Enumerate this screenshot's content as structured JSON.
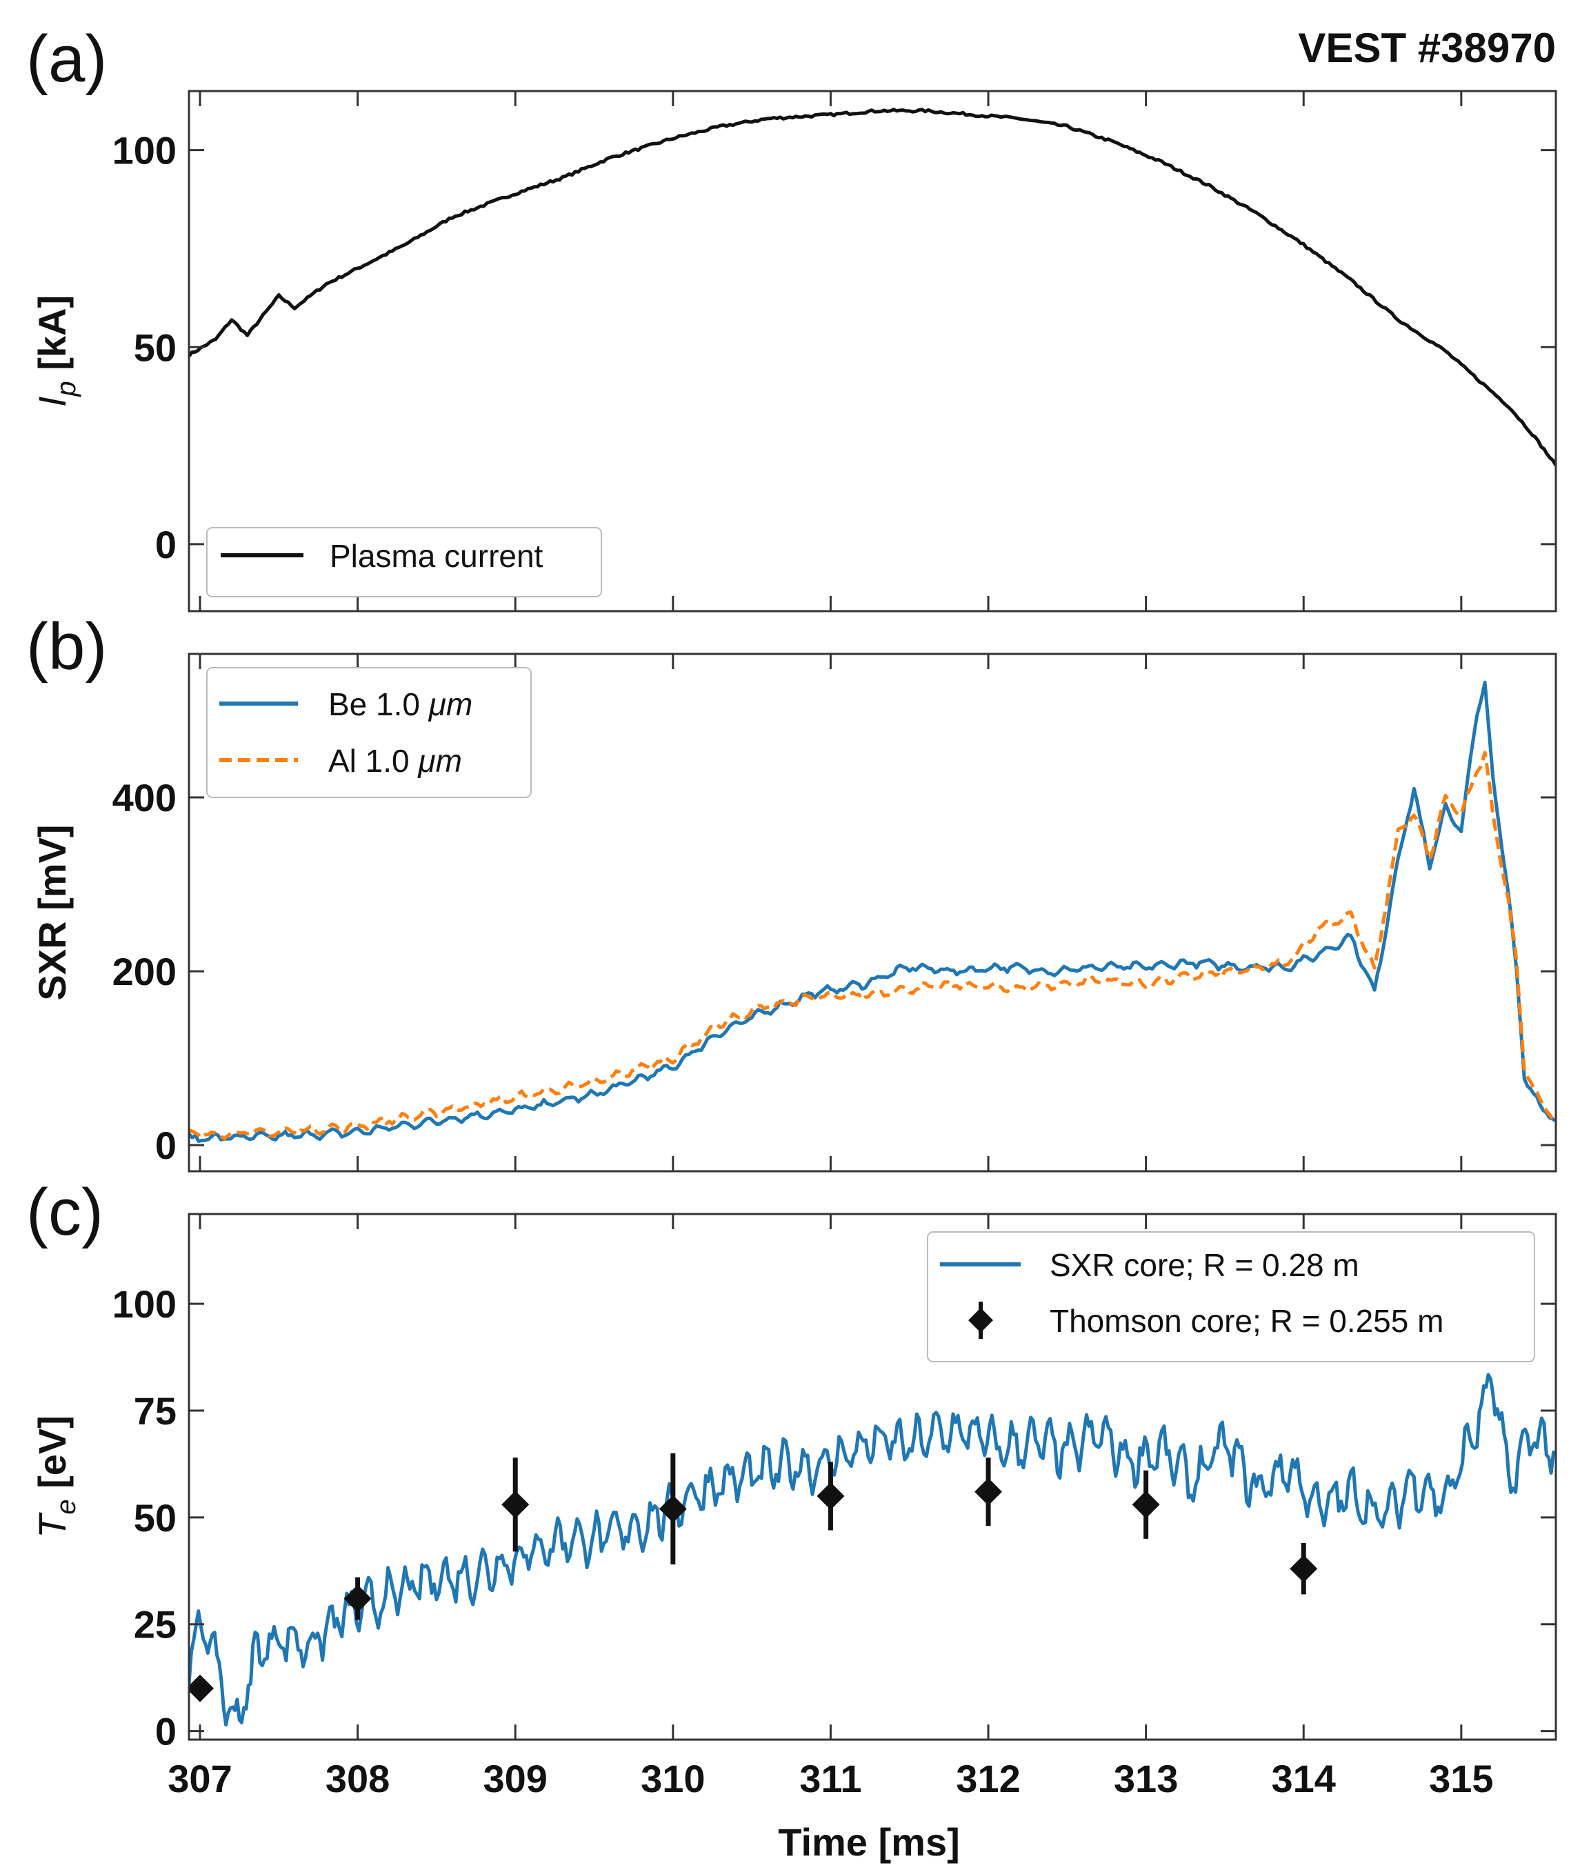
{
  "figure": {
    "title": "VEST #38970",
    "xlabel": "Time [ms]",
    "x_ticks": [
      307,
      308,
      309,
      310,
      311,
      312,
      313,
      314,
      315
    ],
    "xlim": [
      306.93,
      315.6
    ]
  },
  "chart_data": [
    {
      "panel": "(a)",
      "type": "line",
      "ylabel_main": "I",
      "ylabel_sub": "p",
      "ylabel_unit": " [kA]",
      "ylim": [
        -17,
        115
      ],
      "y_ticks": [
        0,
        50,
        100
      ],
      "legend_position": "bottom-left",
      "series": [
        {
          "name": "Plasma current",
          "color": "#111111",
          "style": "solid",
          "x": [
            306.93,
            307.1,
            307.2,
            307.3,
            307.4,
            307.5,
            307.6,
            307.8,
            308.0,
            308.3,
            308.6,
            309.0,
            309.3,
            309.6,
            310.0,
            310.3,
            310.6,
            311.0,
            311.3,
            311.6,
            311.9,
            312.2,
            312.5,
            312.8,
            313.1,
            313.4,
            313.7,
            314.0,
            314.3,
            314.6,
            314.9,
            315.1,
            315.3,
            315.45,
            315.6
          ],
          "y": [
            48,
            52,
            57,
            53,
            58,
            63,
            60,
            66,
            70,
            76,
            83,
            89,
            93,
            98,
            103,
            106,
            108,
            109,
            110,
            110,
            109,
            108,
            106,
            102,
            97,
            91,
            84,
            76,
            67,
            57,
            49,
            42,
            35,
            28,
            20
          ]
        }
      ]
    },
    {
      "panel": "(b)",
      "type": "line",
      "ylabel": "SXR [mV]",
      "ylim": [
        -30,
        565
      ],
      "y_ticks": [
        0,
        200,
        400
      ],
      "legend_position": "top-left",
      "series": [
        {
          "name": "Be 1.0 ",
          "name_unit": "μm",
          "color": "#1f77b4",
          "style": "solid",
          "x": [
            306.93,
            307.5,
            308.0,
            308.5,
            309.0,
            309.5,
            310.0,
            310.3,
            310.6,
            310.9,
            311.2,
            311.5,
            311.8,
            312.1,
            312.4,
            312.7,
            313.0,
            313.3,
            313.6,
            313.9,
            314.1,
            314.3,
            314.45,
            314.6,
            314.7,
            314.8,
            314.9,
            315.0,
            315.1,
            315.15,
            315.2,
            315.3,
            315.35,
            315.4,
            315.5,
            315.6
          ],
          "y": [
            8,
            10,
            15,
            28,
            40,
            58,
            90,
            130,
            155,
            175,
            185,
            205,
            200,
            205,
            200,
            205,
            205,
            210,
            205,
            205,
            220,
            240,
            175,
            330,
            410,
            320,
            390,
            360,
            500,
            530,
            420,
            290,
            200,
            80,
            45,
            28
          ]
        },
        {
          "name": "Al 1.0 ",
          "name_unit": "μm",
          "color": "#ff7f0e",
          "style": "dashed",
          "x": [
            306.93,
            307.5,
            308.0,
            308.5,
            309.0,
            309.5,
            310.0,
            310.3,
            310.6,
            310.9,
            311.2,
            311.5,
            311.8,
            312.1,
            312.4,
            312.7,
            313.0,
            313.3,
            313.6,
            313.9,
            314.1,
            314.3,
            314.45,
            314.6,
            314.7,
            314.8,
            314.9,
            315.0,
            315.1,
            315.15,
            315.2,
            315.3,
            315.35,
            315.4,
            315.5,
            315.6
          ],
          "y": [
            12,
            15,
            22,
            38,
            55,
            72,
            100,
            140,
            160,
            170,
            172,
            180,
            185,
            180,
            183,
            190,
            185,
            195,
            200,
            210,
            250,
            265,
            200,
            360,
            380,
            330,
            400,
            380,
            430,
            450,
            380,
            280,
            210,
            90,
            50,
            30
          ]
        }
      ]
    },
    {
      "panel": "(c)",
      "type": "line",
      "ylabel_main": "T",
      "ylabel_sub": "e",
      "ylabel_unit": " [eV]",
      "ylim": [
        -2,
        121
      ],
      "y_ticks": [
        0,
        25,
        50,
        75,
        100
      ],
      "legend_position": "top-right",
      "series": [
        {
          "name": "SXR core; R = 0.28 m",
          "color": "#1f77b4",
          "style": "solid",
          "x": [
            306.93,
            307.05,
            307.15,
            307.25,
            307.35,
            307.5,
            307.7,
            307.9,
            308.1,
            308.3,
            308.5,
            308.7,
            308.9,
            309.1,
            309.3,
            309.5,
            309.7,
            309.9,
            310.1,
            310.3,
            310.5,
            310.7,
            310.9,
            311.1,
            311.3,
            311.5,
            311.7,
            311.9,
            312.1,
            312.3,
            312.5,
            312.7,
            312.9,
            313.1,
            313.3,
            313.5,
            313.7,
            313.9,
            314.1,
            314.3,
            314.5,
            314.7,
            314.9,
            315.1,
            315.2,
            315.3,
            315.45,
            315.6
          ],
          "y": [
            18,
            25,
            8,
            2,
            18,
            22,
            20,
            27,
            30,
            33,
            36,
            36,
            39,
            42,
            45,
            45,
            47,
            50,
            55,
            58,
            60,
            62,
            62,
            65,
            68,
            67,
            70,
            70,
            66,
            68,
            65,
            70,
            63,
            66,
            58,
            68,
            56,
            62,
            52,
            56,
            50,
            58,
            54,
            72,
            83,
            58,
            70,
            65
          ]
        },
        {
          "name": "Thomson core; R = 0.255 m",
          "color": "#111111",
          "style": "errorbar",
          "x": [
            307,
            308,
            309,
            310,
            311,
            312,
            313,
            314
          ],
          "y": [
            10,
            31,
            53,
            52,
            55,
            56,
            53,
            38
          ],
          "yerr": [
            1.5,
            5,
            11,
            13,
            8,
            8,
            8,
            6
          ]
        }
      ]
    }
  ]
}
